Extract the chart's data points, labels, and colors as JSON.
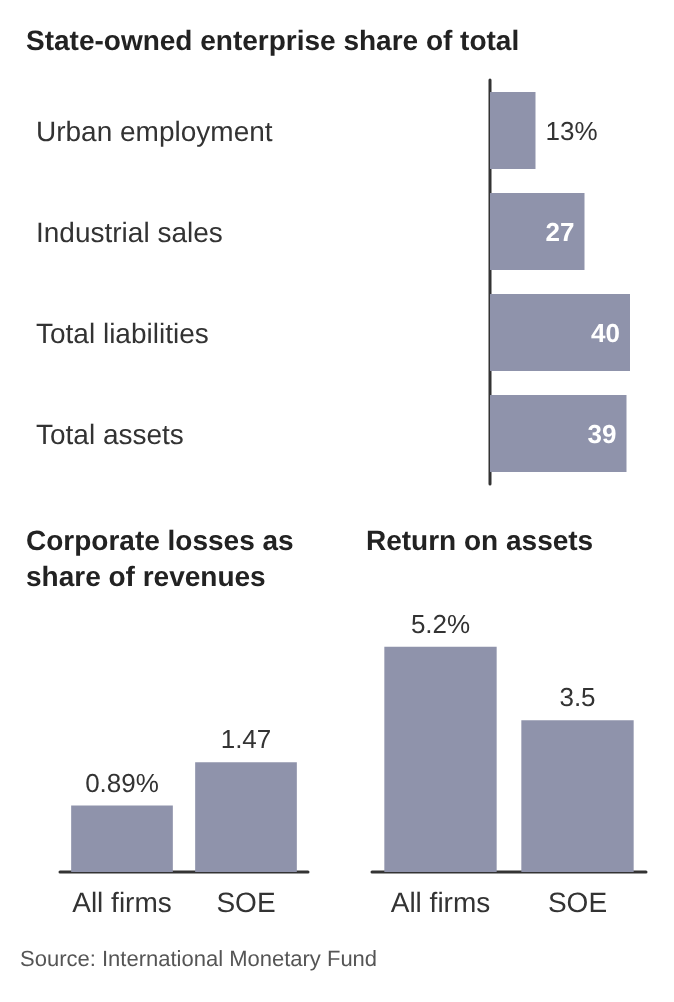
{
  "chart_data": [
    {
      "type": "bar",
      "orientation": "horizontal",
      "title": "State-owned enterprise share of total",
      "categories": [
        "Urban employment",
        "Industrial sales",
        "Total liabilities",
        "Total assets"
      ],
      "values": [
        13,
        27,
        40,
        39
      ],
      "color": "#8f93ab",
      "value_labels": [
        "13%",
        "27",
        "40",
        "39"
      ],
      "annotations": [
        "Source: International Monetary Fund"
      ]
    },
    {
      "type": "bar",
      "title": "Corporate losses as share of revenues",
      "categories": [
        "All firms",
        "SOE"
      ],
      "values": [
        0.89,
        1.47
      ],
      "color": "#8f93ab",
      "value_labels": [
        "0.89%",
        "1.47"
      ]
    },
    {
      "type": "bar",
      "title": "Return on assets",
      "categories": [
        "All firms",
        "SOE"
      ],
      "values": [
        5.2,
        3.5
      ],
      "color": "#8f93ab",
      "value_labels": [
        "5.2%",
        "3.5"
      ]
    }
  ]
}
